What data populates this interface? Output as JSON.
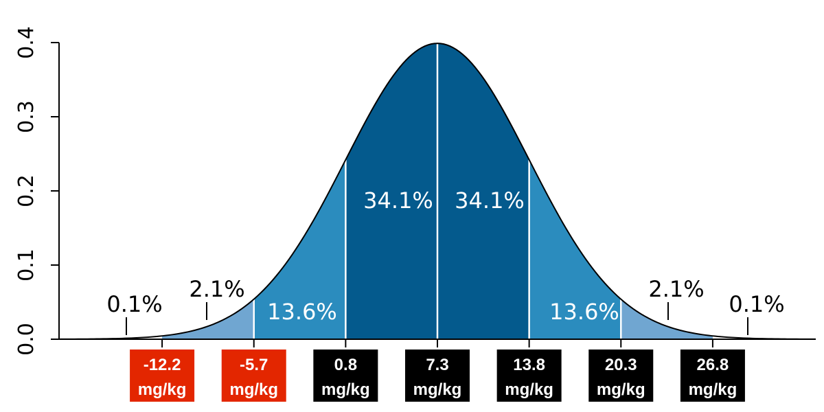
{
  "chart_data": {
    "type": "area",
    "distribution": "normal",
    "title": "",
    "xlabel": "",
    "ylabel": "",
    "mean": 7.3,
    "sd": 6.5,
    "xlim": [
      -19.5,
      34.1
    ],
    "ylim": [
      0,
      0.4
    ],
    "y_ticks": [
      "0.0",
      "0.1",
      "0.2",
      "0.3",
      "0.4"
    ],
    "y_tick_values": [
      0,
      0.1,
      0.2,
      0.3,
      0.4
    ],
    "x_tick_values": [
      -12.2,
      -5.7,
      0.8,
      7.3,
      13.8,
      20.3,
      26.8
    ],
    "x_tick_labels": [
      {
        "value": "-12.2",
        "unit": "mg/kg",
        "color": "#e32600"
      },
      {
        "value": "-5.7",
        "unit": "mg/kg",
        "color": "#e32600"
      },
      {
        "value": "0.8",
        "unit": "mg/kg",
        "color": "#000000"
      },
      {
        "value": "7.3",
        "unit": "mg/kg",
        "color": "#000000"
      },
      {
        "value": "13.8",
        "unit": "mg/kg",
        "color": "#000000"
      },
      {
        "value": "20.3",
        "unit": "mg/kg",
        "color": "#000000"
      },
      {
        "value": "26.8",
        "unit": "mg/kg",
        "color": "#000000"
      }
    ],
    "regions": [
      {
        "from": -19.5,
        "to": -12.2,
        "percent": "0.1%",
        "color": "none"
      },
      {
        "from": -12.2,
        "to": -5.7,
        "percent": "2.1%",
        "color": "#70a6d1"
      },
      {
        "from": -5.7,
        "to": 0.8,
        "percent": "13.6%",
        "color": "#2b8cbe"
      },
      {
        "from": 0.8,
        "to": 7.3,
        "percent": "34.1%",
        "color": "#045a8d"
      },
      {
        "from": 7.3,
        "to": 13.8,
        "percent": "34.1%",
        "color": "#045a8d"
      },
      {
        "from": 13.8,
        "to": 20.3,
        "percent": "13.6%",
        "color": "#2b8cbe"
      },
      {
        "from": 20.3,
        "to": 26.8,
        "percent": "2.1%",
        "color": "#70a6d1"
      },
      {
        "from": 26.8,
        "to": 34.1,
        "percent": "0.1%",
        "color": "none"
      }
    ],
    "grid": false,
    "legend": "none"
  }
}
